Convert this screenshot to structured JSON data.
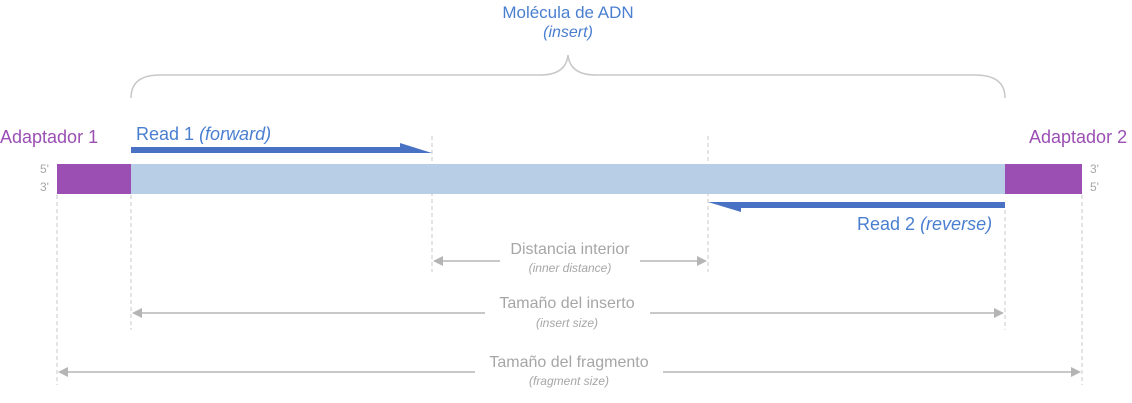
{
  "molecule": {
    "title": "Molécula de ADN",
    "subtitle": "(insert)"
  },
  "adapters": {
    "left": "Adaptador 1",
    "right": "Adaptador 2"
  },
  "ends": {
    "left_top": "5'",
    "left_bottom": "3'",
    "right_top": "3'",
    "right_bottom": "5'"
  },
  "reads": {
    "read1": {
      "label": "Read 1",
      "direction": "(forward)"
    },
    "read2": {
      "label": "Read 2",
      "direction": "(reverse)"
    }
  },
  "measures": {
    "inner": {
      "label": "Distancia interior",
      "sub": "(inner distance)"
    },
    "insert": {
      "label": "Tamaño del inserto",
      "sub": "(insert size)"
    },
    "fragment": {
      "label": "Tamaño del fragmento",
      "sub": "(fragment size)"
    }
  },
  "colors": {
    "adapter": "#9b4fb3",
    "insert_bar": "#b8cde6",
    "read": "#4a72c4",
    "guide": "#c8c8c8",
    "measure_arrow": "#b5b5b5"
  }
}
